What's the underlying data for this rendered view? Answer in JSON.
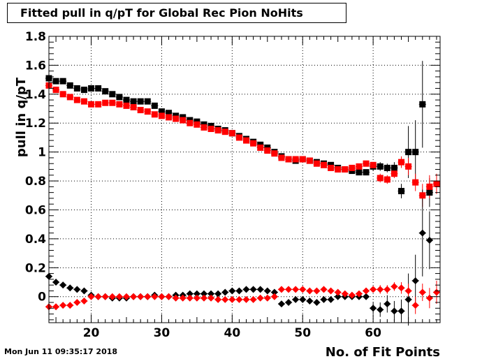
{
  "title": "Fitted pull in q/pT for Global Rec Pion NoHits",
  "timestamp": "Mon Jun 11 09:35:17 2018",
  "colors": {
    "series_black": "#000000",
    "series_red": "#ff0000",
    "grid": "#000000"
  },
  "chart_data": {
    "type": "scatter",
    "xlabel": "No. of Fit Points",
    "ylabel": "pull in q/pT",
    "xlim": [
      14,
      69.5
    ],
    "ylim": [
      -0.18,
      1.8
    ],
    "grid": true,
    "x_ticks": [
      20,
      30,
      40,
      50,
      60
    ],
    "y_ticks": [
      0,
      0.2,
      0.4,
      0.6,
      0.8,
      1,
      1.2,
      1.4,
      1.6,
      1.8
    ],
    "y_tick_labels": [
      "0",
      "0.2",
      "0.4",
      "0.6",
      "0.8",
      "1",
      "1.2",
      "1.4",
      "1.6",
      "1.8"
    ],
    "series": [
      {
        "marker": "square",
        "color": "#000000",
        "x": [
          14,
          15,
          16,
          17,
          18,
          19,
          20,
          21,
          22,
          23,
          24,
          25,
          26,
          27,
          28,
          29,
          30,
          31,
          32,
          33,
          34,
          35,
          36,
          37,
          38,
          39,
          40,
          41,
          42,
          43,
          44,
          45,
          46,
          47,
          48,
          49,
          50,
          51,
          52,
          53,
          54,
          55,
          56,
          57,
          58,
          59,
          60,
          61,
          62,
          63,
          64,
          65,
          66,
          67,
          68
        ],
        "y": [
          1.51,
          1.49,
          1.49,
          1.46,
          1.44,
          1.43,
          1.44,
          1.44,
          1.42,
          1.4,
          1.38,
          1.36,
          1.35,
          1.35,
          1.35,
          1.32,
          1.28,
          1.27,
          1.25,
          1.24,
          1.22,
          1.21,
          1.19,
          1.18,
          1.16,
          1.15,
          1.13,
          1.11,
          1.09,
          1.07,
          1.05,
          1.03,
          1.0,
          0.97,
          0.95,
          0.94,
          0.95,
          0.94,
          0.93,
          0.92,
          0.91,
          0.89,
          0.88,
          0.87,
          0.86,
          0.86,
          0.9,
          0.9,
          0.89,
          0.89,
          0.73,
          1.0,
          1.0,
          1.33,
          0.72
        ],
        "err": [
          0.01,
          0.01,
          0.01,
          0.01,
          0.01,
          0.01,
          0.01,
          0.01,
          0.01,
          0.01,
          0.01,
          0.01,
          0.01,
          0.01,
          0.01,
          0.01,
          0.01,
          0.01,
          0.01,
          0.01,
          0.01,
          0.01,
          0.01,
          0.01,
          0.01,
          0.01,
          0.01,
          0.01,
          0.01,
          0.01,
          0.01,
          0.01,
          0.01,
          0.01,
          0.01,
          0.01,
          0.01,
          0.01,
          0.01,
          0.01,
          0.01,
          0.01,
          0.01,
          0.015,
          0.02,
          0.02,
          0.03,
          0.03,
          0.03,
          0.04,
          0.05,
          0.18,
          0.22,
          0.3,
          0.1
        ]
      },
      {
        "marker": "square",
        "color": "#ff0000",
        "x": [
          14,
          15,
          16,
          17,
          18,
          19,
          20,
          21,
          22,
          23,
          24,
          25,
          26,
          27,
          28,
          29,
          30,
          31,
          32,
          33,
          34,
          35,
          36,
          37,
          38,
          39,
          40,
          41,
          42,
          43,
          44,
          45,
          46,
          47,
          48,
          49,
          50,
          51,
          52,
          53,
          54,
          55,
          56,
          57,
          58,
          59,
          60,
          61,
          62,
          63,
          64,
          65,
          66,
          67,
          68,
          69
        ],
        "y": [
          1.46,
          1.43,
          1.4,
          1.38,
          1.36,
          1.35,
          1.33,
          1.33,
          1.34,
          1.34,
          1.33,
          1.32,
          1.31,
          1.29,
          1.28,
          1.26,
          1.25,
          1.24,
          1.23,
          1.22,
          1.2,
          1.19,
          1.17,
          1.16,
          1.15,
          1.14,
          1.13,
          1.1,
          1.08,
          1.06,
          1.03,
          1.01,
          0.99,
          0.96,
          0.95,
          0.95,
          0.95,
          0.94,
          0.92,
          0.91,
          0.89,
          0.88,
          0.88,
          0.89,
          0.9,
          0.92,
          0.91,
          0.82,
          0.81,
          0.85,
          0.93,
          0.9,
          0.79,
          0.7,
          0.76,
          0.78
        ],
        "err": [
          0.01,
          0.01,
          0.01,
          0.01,
          0.01,
          0.01,
          0.01,
          0.01,
          0.01,
          0.01,
          0.01,
          0.01,
          0.01,
          0.01,
          0.01,
          0.01,
          0.01,
          0.01,
          0.01,
          0.01,
          0.01,
          0.01,
          0.01,
          0.01,
          0.01,
          0.01,
          0.01,
          0.01,
          0.01,
          0.01,
          0.01,
          0.01,
          0.01,
          0.01,
          0.01,
          0.01,
          0.01,
          0.01,
          0.01,
          0.01,
          0.01,
          0.01,
          0.01,
          0.015,
          0.02,
          0.02,
          0.02,
          0.03,
          0.03,
          0.03,
          0.04,
          0.06,
          0.06,
          0.08,
          0.08,
          0.07
        ]
      },
      {
        "marker": "diamond",
        "color": "#000000",
        "x": [
          14,
          15,
          16,
          17,
          18,
          19,
          20,
          21,
          22,
          23,
          24,
          25,
          26,
          27,
          28,
          29,
          30,
          31,
          32,
          33,
          34,
          35,
          36,
          37,
          38,
          39,
          40,
          41,
          42,
          43,
          44,
          45,
          46,
          47,
          48,
          49,
          50,
          51,
          52,
          53,
          54,
          55,
          56,
          57,
          58,
          59,
          60,
          61,
          62,
          63,
          64,
          65,
          66,
          67,
          68
        ],
        "y": [
          0.14,
          0.1,
          0.08,
          0.06,
          0.05,
          0.04,
          0.01,
          0.0,
          0.0,
          -0.01,
          -0.01,
          -0.01,
          0.0,
          0.0,
          0.0,
          0.01,
          0.0,
          0.0,
          0.01,
          0.01,
          0.02,
          0.02,
          0.02,
          0.02,
          0.02,
          0.03,
          0.04,
          0.04,
          0.05,
          0.05,
          0.05,
          0.04,
          0.03,
          -0.05,
          -0.04,
          -0.02,
          -0.02,
          -0.03,
          -0.04,
          -0.02,
          -0.02,
          0.0,
          0.0,
          0.0,
          0.0,
          0.0,
          -0.08,
          -0.09,
          -0.05,
          -0.1,
          -0.1,
          -0.02,
          0.11,
          0.44,
          0.39
        ],
        "err": [
          0.01,
          0.01,
          0.01,
          0.01,
          0.01,
          0.01,
          0.01,
          0.01,
          0.01,
          0.01,
          0.01,
          0.01,
          0.01,
          0.01,
          0.01,
          0.01,
          0.01,
          0.01,
          0.01,
          0.01,
          0.01,
          0.01,
          0.01,
          0.01,
          0.01,
          0.01,
          0.01,
          0.01,
          0.01,
          0.01,
          0.01,
          0.01,
          0.01,
          0.01,
          0.01,
          0.01,
          0.01,
          0.01,
          0.01,
          0.01,
          0.01,
          0.01,
          0.01,
          0.015,
          0.02,
          0.02,
          0.04,
          0.05,
          0.06,
          0.07,
          0.08,
          0.18,
          0.18,
          0.3,
          0.2
        ]
      },
      {
        "marker": "diamond",
        "color": "#ff0000",
        "x": [
          14,
          15,
          16,
          17,
          18,
          19,
          20,
          21,
          22,
          23,
          24,
          25,
          26,
          27,
          28,
          29,
          30,
          31,
          32,
          33,
          34,
          35,
          36,
          37,
          38,
          39,
          40,
          41,
          42,
          43,
          44,
          45,
          46,
          47,
          48,
          49,
          50,
          51,
          52,
          53,
          54,
          55,
          56,
          57,
          58,
          59,
          60,
          61,
          62,
          63,
          64,
          65,
          66,
          67,
          68,
          69
        ],
        "y": [
          -0.07,
          -0.07,
          -0.06,
          -0.06,
          -0.04,
          -0.03,
          0.0,
          0.0,
          0.0,
          0.0,
          0.0,
          0.0,
          0.0,
          0.0,
          0.0,
          0.0,
          0.0,
          0.0,
          -0.01,
          -0.01,
          -0.01,
          -0.01,
          -0.01,
          -0.01,
          -0.02,
          -0.02,
          -0.02,
          -0.02,
          -0.02,
          -0.02,
          -0.01,
          -0.01,
          0.0,
          0.05,
          0.05,
          0.05,
          0.05,
          0.04,
          0.04,
          0.05,
          0.04,
          0.03,
          0.02,
          0.01,
          0.02,
          0.04,
          0.05,
          0.05,
          0.05,
          0.07,
          0.06,
          0.04,
          -0.06,
          0.03,
          -0.01,
          0.03
        ],
        "err": [
          0.01,
          0.01,
          0.01,
          0.01,
          0.01,
          0.01,
          0.01,
          0.01,
          0.01,
          0.01,
          0.01,
          0.01,
          0.01,
          0.01,
          0.01,
          0.01,
          0.01,
          0.01,
          0.01,
          0.01,
          0.01,
          0.01,
          0.01,
          0.01,
          0.01,
          0.01,
          0.01,
          0.01,
          0.01,
          0.01,
          0.01,
          0.01,
          0.01,
          0.01,
          0.01,
          0.01,
          0.01,
          0.01,
          0.01,
          0.01,
          0.01,
          0.01,
          0.01,
          0.01,
          0.02,
          0.02,
          0.02,
          0.03,
          0.03,
          0.03,
          0.04,
          0.05,
          0.06,
          0.06,
          0.07,
          0.08
        ]
      }
    ]
  }
}
